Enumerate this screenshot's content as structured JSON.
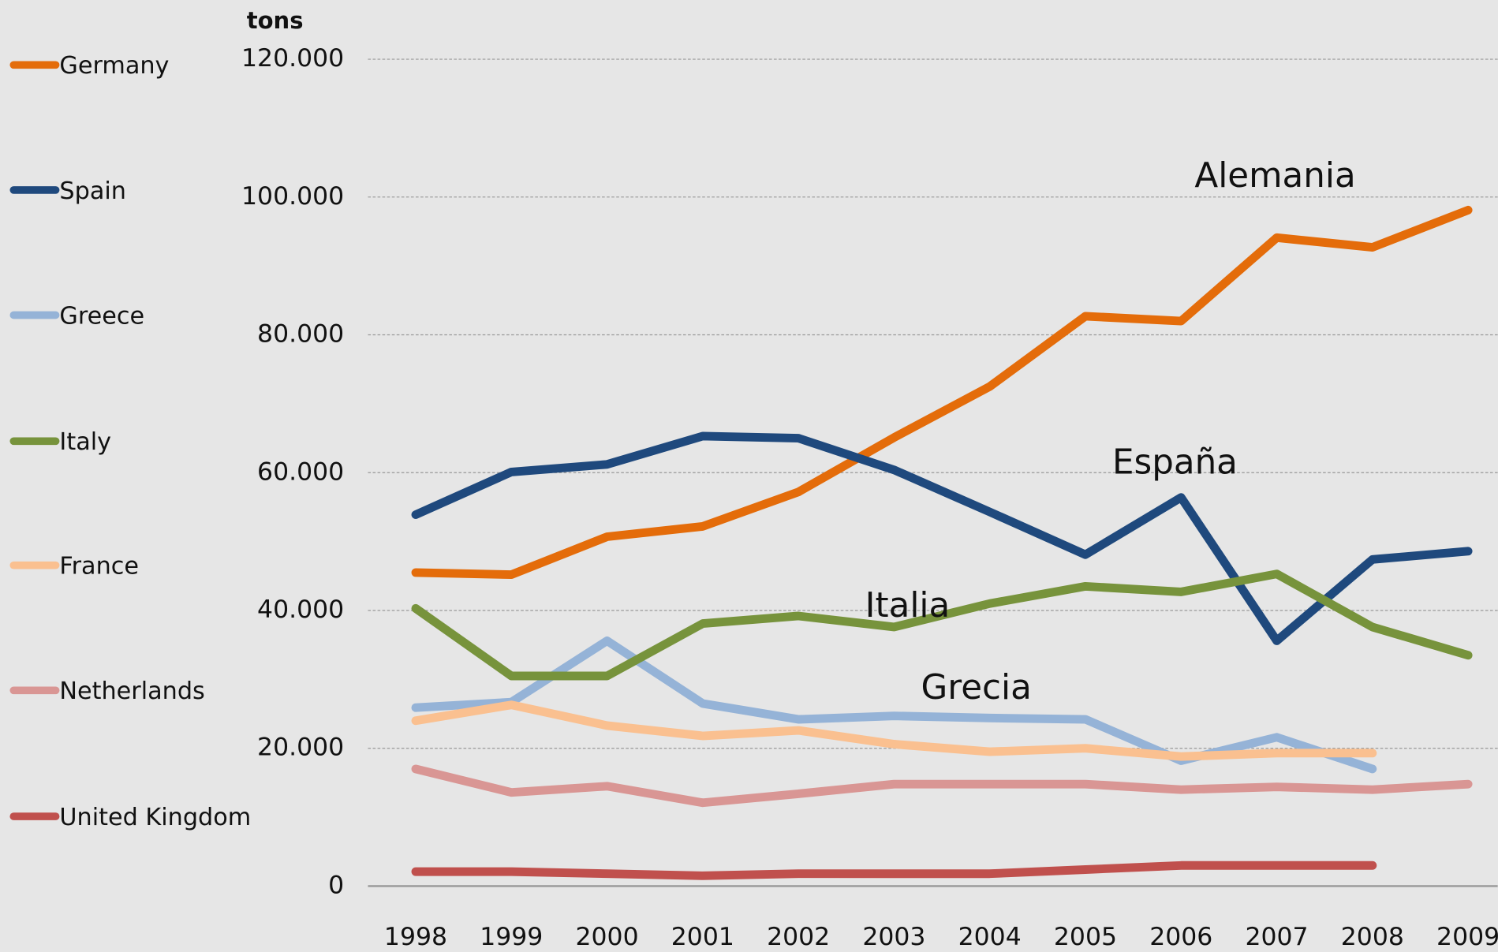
{
  "chart_data": {
    "type": "line",
    "y_label": "tons",
    "categories": [
      "1998",
      "1999",
      "2000",
      "2001",
      "2002",
      "2003",
      "2004",
      "2005",
      "2006",
      "2007",
      "2008",
      "2009"
    ],
    "ylim": [
      0,
      120000
    ],
    "yticks": [
      0,
      {
        "value": 20000,
        "label": "20.000"
      },
      {
        "value": 40000,
        "label": "40.000"
      },
      {
        "value": 60000,
        "label": "60.000"
      },
      {
        "value": 80000,
        "label": "80.000"
      },
      {
        "value": 100000,
        "label": "100.000"
      },
      {
        "value": 120000,
        "label": "120.000"
      }
    ],
    "grid": true,
    "legend": "left",
    "series": [
      {
        "name": "Germany",
        "color": "#e46c0a",
        "values": [
          45500,
          45200,
          50700,
          52200,
          57200,
          65100,
          72500,
          82700,
          82000,
          94100,
          92700,
          98100
        ]
      },
      {
        "name": "Spain",
        "color": "#1f497d",
        "values": [
          53900,
          60100,
          61200,
          65300,
          65000,
          60400,
          54300,
          48100,
          56400,
          35600,
          47400,
          48600
        ]
      },
      {
        "name": "Greece",
        "color": "#95b3d7",
        "values": [
          25900,
          26700,
          35600,
          26500,
          24200,
          24700,
          24400,
          24200,
          18200,
          21600,
          17000,
          null
        ]
      },
      {
        "name": "Italy",
        "color": "#77933c",
        "values": [
          40300,
          30500,
          30500,
          38100,
          39200,
          37600,
          41000,
          43500,
          42700,
          45300,
          37600,
          33500
        ]
      },
      {
        "name": "France",
        "color": "#fac090",
        "values": [
          24000,
          26300,
          23300,
          21800,
          22600,
          20600,
          19500,
          20000,
          18800,
          19300,
          19300,
          null
        ]
      },
      {
        "name": "Netherlands",
        "color": "#d99694",
        "values": [
          17000,
          13600,
          14500,
          12100,
          13400,
          14800,
          14800,
          14800,
          14000,
          14400,
          14000,
          14800
        ]
      },
      {
        "name": "United Kingdom",
        "color": "#c0504d",
        "values": [
          2100,
          2100,
          1800,
          1500,
          1800,
          1800,
          1800,
          2400,
          3000,
          3000,
          3000,
          null
        ]
      }
    ],
    "annotations": [
      "Alemania",
      "España",
      "Italia",
      "Grecia"
    ]
  }
}
